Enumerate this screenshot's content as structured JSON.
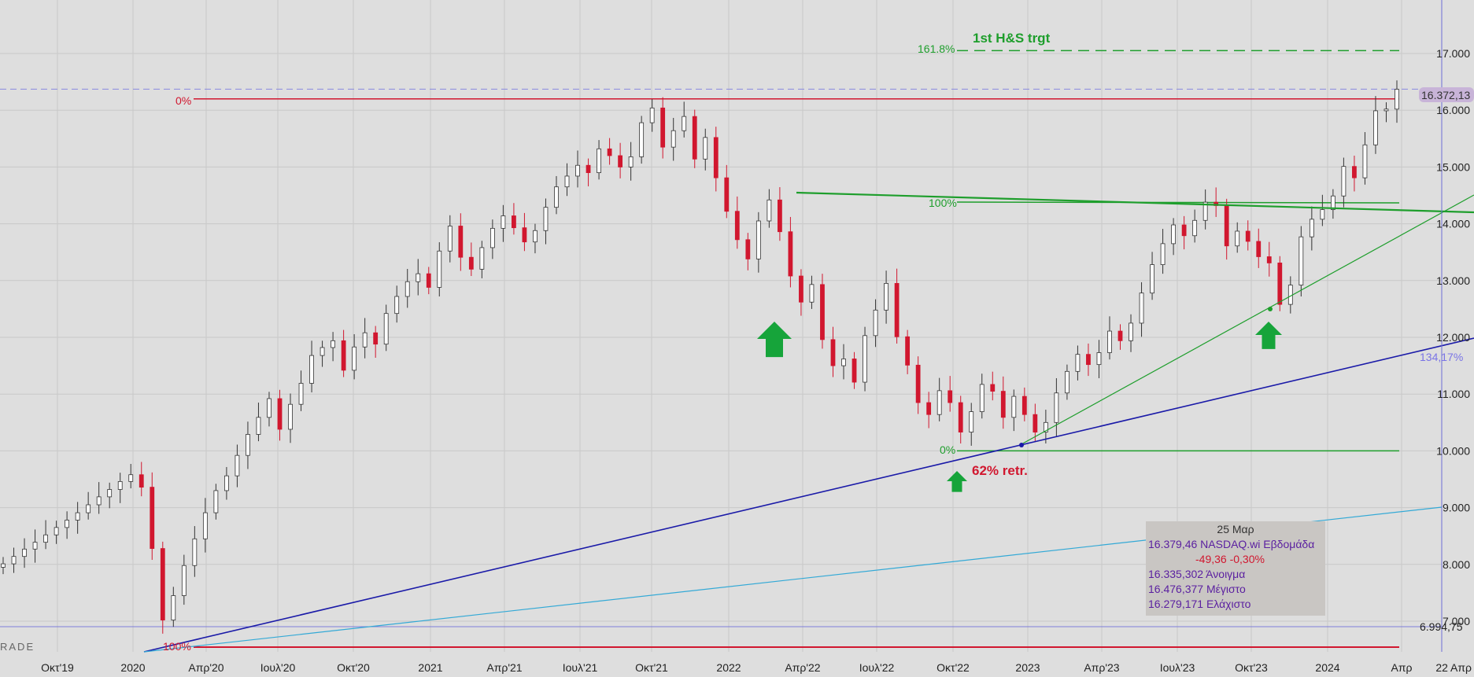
{
  "watermark": "RADE",
  "y_axis": {
    "ticks": [
      "17.000",
      "16.000",
      "15.000",
      "14.000",
      "13.000",
      "12.000",
      "11.000",
      "10.000",
      "9.000",
      "8.000",
      "7.000"
    ],
    "tick_values": [
      17000,
      16000,
      15000,
      14000,
      13000,
      12000,
      11000,
      10000,
      9000,
      8000,
      7000
    ]
  },
  "x_axis": {
    "ticks": [
      "Οκτ'19",
      "2020",
      "Απρ'20",
      "Ιουλ'20",
      "Οκτ'20",
      "2021",
      "Απρ'21",
      "Ιουλ'21",
      "Οκτ'21",
      "2022",
      "Απρ'22",
      "Ιουλ'22",
      "Οκτ'22",
      "2023",
      "Απρ'23",
      "Ιουλ'23",
      "Οκτ'23",
      "2024",
      "Απρ"
    ],
    "end_label": "22 Απρ"
  },
  "price_labels": {
    "last_price": "16.372,13",
    "reference_price": "6.994,75",
    "trendline_extension": "134,17%"
  },
  "annotations": {
    "fib_0_top": "0%",
    "fib_100_bottom": "100%",
    "fib_100_neckline": "100%",
    "fib_0_low": "0%",
    "fib_1618": "161.8%",
    "target_text": "1st H&S trgt",
    "retracement_text": "62% retr."
  },
  "info_box": {
    "date": "25 Μαρ",
    "line1": "16.379,46 NASDAQ.wi Εβδομάδα",
    "line2": "-49,36 -0,30%",
    "line3": "16.335,302 Άνοιγμα",
    "line4": "16.476,377 Μέγιστο",
    "line5": "16.279,171 Ελάχιστο"
  },
  "colors": {
    "up_candle": "#ffffff",
    "down_candle": "#d1172f",
    "green_lines": "#1e9e2c",
    "blue_trendline": "#1a1aa8",
    "cyan_trendline": "#33a9d6",
    "red_levels": "#d1172f",
    "arrow": "#16a43a"
  },
  "chart_data": {
    "type": "candlestick",
    "series": [
      {
        "name": "NASDAQ.wi",
        "timeframe": "Εβδομάδα",
        "close": [
          8010,
          8140,
          8270,
          8390,
          8520,
          8650,
          8780,
          8910,
          9050,
          9190,
          9320,
          9460,
          9580,
          9360,
          8280,
          7020,
          7450,
          7980,
          8450,
          8910,
          9300,
          9560,
          9920,
          10290,
          10590,
          10920,
          10380,
          10820,
          11190,
          11680,
          11820,
          11940,
          11420,
          11830,
          12080,
          11880,
          12420,
          12720,
          12980,
          13120,
          12880,
          13520,
          13960,
          13410,
          13200,
          13580,
          13920,
          14140,
          13930,
          13680,
          13880,
          14290,
          14650,
          14840,
          15030,
          14900,
          15320,
          15200,
          15000,
          15180,
          15780,
          16040,
          15350,
          15640,
          15890,
          15140,
          15520,
          14810,
          14220,
          13720,
          13380,
          14050,
          14420,
          13860,
          13080,
          12620,
          12930,
          11960,
          11500,
          11620,
          11210,
          12030,
          12480,
          12950,
          12010,
          11510,
          10850,
          10640,
          11060,
          10850,
          10330,
          10690,
          11170,
          11050,
          10590,
          10960,
          10640,
          10330,
          10500,
          11020,
          11400,
          11700,
          11520,
          11730,
          12110,
          11940,
          12250,
          12780,
          13280,
          13650,
          13980,
          13790,
          14060,
          14380,
          14320,
          13610,
          13870,
          13690,
          13420,
          13310,
          12580,
          12920,
          13770,
          14080,
          14250,
          14490,
          15010,
          14810,
          15390,
          15990,
          16020,
          16370
        ]
      }
    ],
    "x_labels": [
      "Οκτ'19",
      "2020",
      "Απρ'20",
      "Ιουλ'20",
      "Οκτ'20",
      "2021",
      "Απρ'21",
      "Ιουλ'21",
      "Οκτ'21",
      "2022",
      "Απρ'22",
      "Ιουλ'22",
      "Οκτ'22",
      "2023",
      "Απρ'23",
      "Ιουλ'23",
      "Οκτ'23",
      "2024",
      "Απρ"
    ],
    "y_ticks": [
      7000,
      8000,
      9000,
      10000,
      11000,
      12000,
      13000,
      14000,
      15000,
      16000,
      17000
    ],
    "ylim": [
      6690,
      17850
    ],
    "levels": {
      "last_price": 16372.13,
      "fib_0_high": 16200,
      "fib_1618_target": 17050,
      "fib_100_low": 6690,
      "fib_0_low_10000": 10000,
      "reference_price": 6994.75
    },
    "grid": true,
    "legend": "none"
  }
}
